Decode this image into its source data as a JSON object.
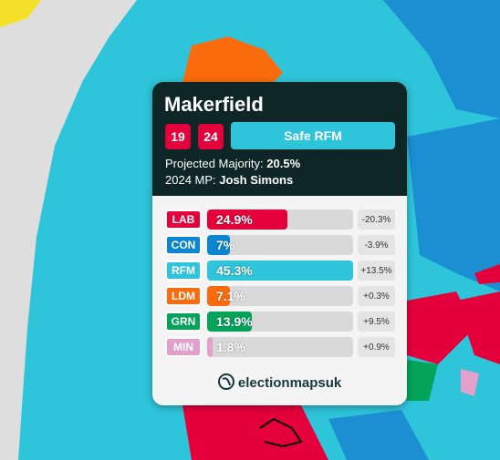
{
  "card": {
    "title": "Makerfield",
    "badges": [
      "19",
      "24"
    ],
    "status": "Safe RFM",
    "majority_label": "Projected Majority:",
    "majority": "20.5%",
    "mp_label": "2024 MP:",
    "mp": "Josh Simons",
    "rows": [
      {
        "party": "LAB",
        "color": "#e4003b",
        "value": 24.9,
        "value_label": "24.9%",
        "change": "-20.3%"
      },
      {
        "party": "CON",
        "color": "#0a87d0",
        "value": 7,
        "value_label": "7%",
        "change": "-3.9%"
      },
      {
        "party": "RFM",
        "color": "#2ec4d9",
        "value": 45.3,
        "value_label": "45.3%",
        "change": "+13.5%"
      },
      {
        "party": "LDM",
        "color": "#f96b0c",
        "value": 7.1,
        "value_label": "7.1%",
        "change": "+0.3%"
      },
      {
        "party": "GRN",
        "color": "#04a35a",
        "value": 13.9,
        "value_label": "13.9%",
        "change": "+9.5%"
      },
      {
        "party": "MIN",
        "color": "#e3a0cb",
        "value": 1.8,
        "value_label": "1.8%",
        "change": "+0.9%"
      }
    ],
    "brand": "electionmapsuk"
  }
}
